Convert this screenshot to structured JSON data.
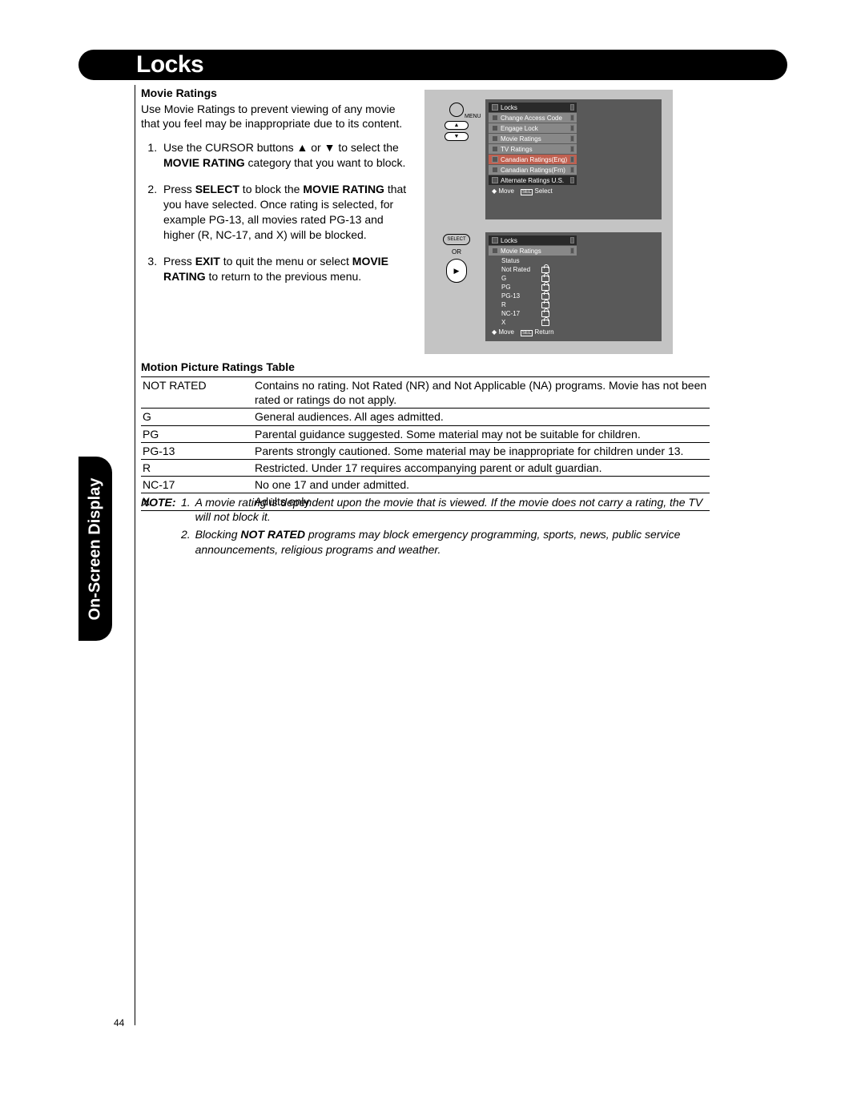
{
  "page_number": "44",
  "header_title": "Locks",
  "side_tab": "On-Screen Display",
  "section": {
    "heading": "Movie Ratings",
    "intro": "Use Movie Ratings to prevent viewing of any movie that you feel may be inappropriate due to its content.",
    "steps": [
      "Use the CURSOR buttons ▲ or ▼ to select the <b>MOVIE RATING</b> category that you want to block.",
      "Press <b>SELECT</b> to block the <b>MOVIE RATING</b> that you have selected. Once rating is selected, for example PG-13, all movies rated PG-13 and higher (R, NC-17, and X) will be blocked.",
      "Press <b>EXIT</b> to quit the menu or select <b>MOVIE RATING</b> to return to the previous menu."
    ]
  },
  "figure_menu": {
    "remote_label": "MENU",
    "header": "Locks",
    "items": [
      "Change Access Code",
      "Engage Lock",
      "Movie Ratings",
      "TV Ratings"
    ],
    "selected": "Canadian Ratings(Eng)",
    "items_after": [
      "Canadian Ratings(Frn)"
    ],
    "last": "Alternate Ratings U.S.",
    "footer_move": "Move",
    "footer_sel_icon": "SEL",
    "footer_sel": "Select"
  },
  "figure_select": {
    "select_label": "SELECT",
    "or": "OR",
    "header": "Locks",
    "sub": "Movie Ratings",
    "status": "Status",
    "ratings": [
      "Not Rated",
      "G",
      "PG",
      "PG-13",
      "R",
      "NC-17",
      "X"
    ],
    "footer_move": "Move",
    "footer_ret_icon": "SEL",
    "footer_ret": "Return"
  },
  "table": {
    "title": "Motion Picture Ratings Table",
    "rows": [
      [
        "NOT RATED",
        "Contains no rating. Not Rated (NR) and Not Applicable (NA) programs. Movie has not been rated or ratings do not apply."
      ],
      [
        "G",
        "General audiences. All ages admitted."
      ],
      [
        "PG",
        "Parental guidance suggested. Some material may not be suitable for children."
      ],
      [
        "PG-13",
        "Parents strongly cautioned. Some material may be inappropriate for children under 13."
      ],
      [
        "R",
        "Restricted. Under 17 requires accompanying parent or adult guardian."
      ],
      [
        "NC-17",
        "No one 17 and under admitted."
      ],
      [
        "X",
        "Adults only"
      ]
    ]
  },
  "note": {
    "label": "NOTE:",
    "items": [
      "A movie rating is dependent upon the movie that is viewed. If the movie does not carry a rating, the TV will not block it.",
      "Blocking <b>NOT RATED</b> programs may block emergency programming, sports, news, public service announcements, religious programs and weather."
    ]
  },
  "colors": {
    "figures_bg": "#c4c4c4",
    "osd_bg": "#595959",
    "menu_item": "#888888",
    "menu_sel": "#c06050",
    "menu_dark": "#2a2a2a"
  }
}
